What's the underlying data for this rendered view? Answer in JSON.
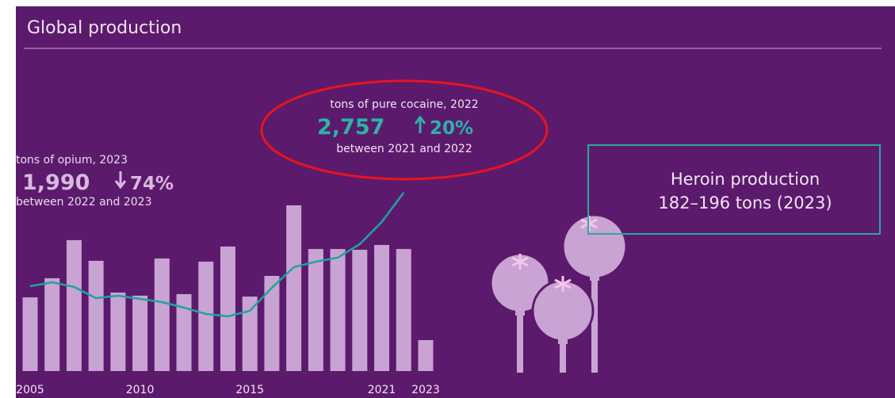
{
  "chart_data": {
    "type": "bar",
    "title": "Global production",
    "categories": [
      "2005",
      null,
      null,
      null,
      null,
      "2010",
      null,
      null,
      null,
      null,
      "2015",
      null,
      null,
      null,
      null,
      null,
      "2021",
      null,
      "2023"
    ],
    "series": [
      {
        "name": "tons of opium, 2023",
        "color": "#c9a3d3",
        "type": "bar",
        "values": [
          4740,
          5970,
          8420,
          7090,
          5050,
          4850,
          7240,
          4950,
          7040,
          8010,
          4790,
          6120,
          10660,
          7850,
          7850,
          7800,
          8110,
          7850,
          1990
        ],
        "value_labels": [
          null,
          null,
          null,
          null,
          null,
          null,
          null,
          null,
          null,
          null,
          null,
          null,
          null,
          null,
          null,
          null,
          null,
          null,
          "1,990"
        ]
      },
      {
        "name": "tons of pure cocaine, 2022",
        "color": "#1ea59b",
        "type": "line",
        "axis": "y2",
        "values": [
          1311,
          1372,
          1299,
          1127,
          1164,
          1115,
          1066,
          980,
          882,
          845,
          931,
          1286,
          1605,
          1690,
          1752,
          1960,
          2303,
          2757,
          null
        ],
        "value_labels": [
          null,
          null,
          null,
          null,
          null,
          null,
          null,
          null,
          null,
          null,
          null,
          null,
          null,
          null,
          null,
          null,
          null,
          "2,757",
          null
        ]
      }
    ],
    "ylim": [
      0,
      12240
    ],
    "y2lim": [
      0,
      2940
    ],
    "annotations": {
      "opium_change": "74%",
      "opium_period": "between 2022 and 2023",
      "cocaine_change": "20%",
      "cocaine_period": "between 2021 and 2022",
      "heroin_title": "Heroin production",
      "heroin_range": "182–196 tons (2023)"
    }
  }
}
